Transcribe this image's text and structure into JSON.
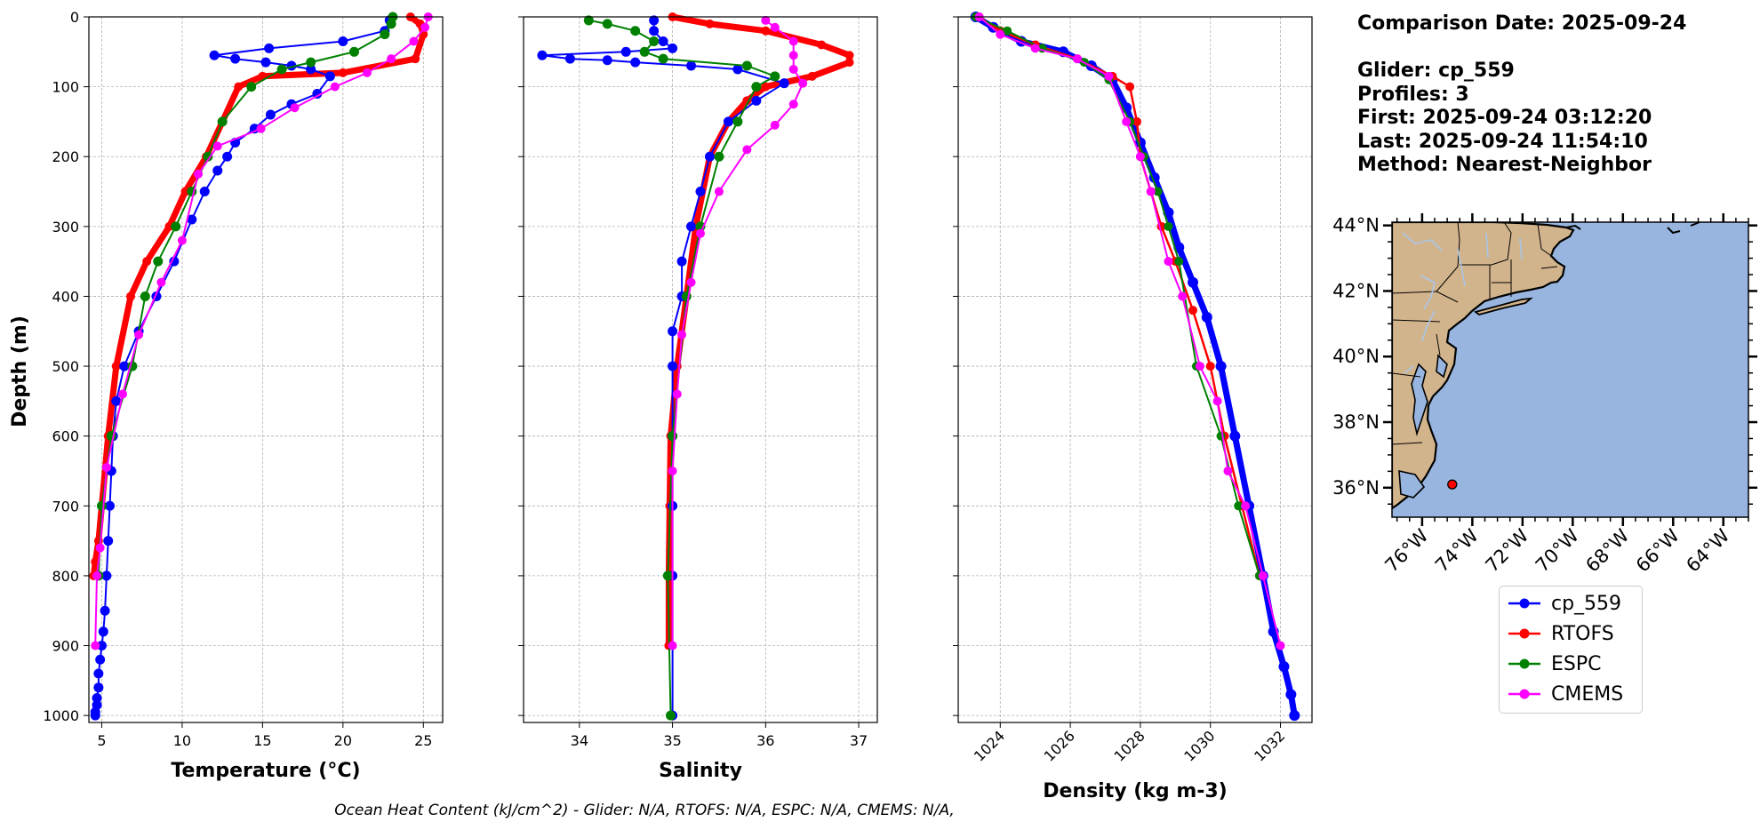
{
  "info": {
    "comparison_date": "Comparison Date: 2025-09-24",
    "glider": "Glider: cp_559",
    "profiles": "Profiles: 3",
    "first": "First: 2025-09-24 03:12:20",
    "last": "Last: 2025-09-24 11:54:10",
    "method": "Method: Nearest-Neighbor"
  },
  "footer": "Ocean Heat Content (kJ/cm^2) - Glider: N/A,  RTOFS: N/A,  ESPC: N/A,  CMEMS: N/A,",
  "colors": {
    "glider": "#0000ff",
    "rtofs": "#ff0000",
    "espc": "#008000",
    "cmems": "#ff00ff",
    "raw": "#00e5ff",
    "land": "#d2b48c",
    "ocean": "#98b5e0",
    "river": "#a9c6e8"
  },
  "legend": [
    {
      "label": "cp_559",
      "color": "#0000ff"
    },
    {
      "label": "RTOFS",
      "color": "#ff0000"
    },
    {
      "label": "ESPC",
      "color": "#008000"
    },
    {
      "label": "CMEMS",
      "color": "#ff00ff"
    }
  ],
  "chart_data": [
    {
      "type": "line",
      "xlabel": "Temperature (°C)",
      "ylabel": "Depth (m)",
      "xlim": [
        4.2,
        26.2
      ],
      "ylim": [
        1010,
        0
      ],
      "xticks": [
        5,
        10,
        15,
        20,
        25
      ],
      "yticks": [
        0,
        100,
        200,
        300,
        400,
        500,
        600,
        700,
        800,
        900,
        1000
      ],
      "grid": true,
      "series": [
        {
          "name": "cp_559",
          "x": [
            22.9,
            22.6,
            20.0,
            15.4,
            12.0,
            13.3,
            15.2,
            16.8,
            18.0,
            19.2,
            18.4,
            16.8,
            15.5,
            14.5,
            13.3,
            12.8,
            12.2,
            11.4,
            10.6,
            9.5,
            8.4,
            7.3,
            6.4,
            5.9,
            5.7,
            5.6,
            5.5,
            5.4,
            5.3,
            5.2,
            5.1,
            5.0,
            4.9,
            4.8,
            4.8,
            4.7,
            4.7,
            4.6,
            4.6
          ],
          "y": [
            5,
            20,
            35,
            45,
            55,
            60,
            65,
            70,
            75,
            85,
            110,
            125,
            140,
            160,
            180,
            200,
            220,
            250,
            290,
            350,
            400,
            450,
            500,
            550,
            600,
            650,
            700,
            750,
            800,
            850,
            880,
            900,
            920,
            940,
            960,
            975,
            985,
            995,
            1000
          ]
        },
        {
          "name": "RTOFS",
          "x": [
            24.2,
            24.8,
            25.0,
            24.5,
            20.0,
            15.0,
            13.5,
            12.5,
            11.5,
            10.2,
            9.2,
            7.8,
            6.8,
            5.9,
            5.4,
            5.0,
            4.8,
            4.6,
            4.5
          ],
          "y": [
            0,
            10,
            25,
            60,
            80,
            85,
            100,
            150,
            200,
            250,
            300,
            350,
            400,
            500,
            600,
            700,
            750,
            780,
            800
          ]
        },
        {
          "name": "ESPC",
          "x": [
            23.1,
            23.0,
            22.6,
            20.7,
            18.0,
            16.2,
            14.3,
            12.5,
            11.6,
            10.6,
            9.6,
            8.5,
            7.7,
            6.9,
            5.6,
            5.0,
            4.8
          ],
          "y": [
            0,
            10,
            25,
            50,
            65,
            75,
            100,
            150,
            200,
            250,
            300,
            350,
            400,
            500,
            600,
            700,
            800
          ]
        },
        {
          "name": "CMEMS",
          "x": [
            25.3,
            25.1,
            24.4,
            23.0,
            21.5,
            19.5,
            17.0,
            14.9,
            12.2,
            11.0,
            10.0,
            8.7,
            7.3,
            6.3,
            5.3,
            4.9,
            4.7,
            4.6
          ],
          "y": [
            0,
            15,
            35,
            60,
            80,
            100,
            130,
            160,
            185,
            225,
            320,
            380,
            455,
            540,
            645,
            760,
            800,
            900
          ]
        }
      ]
    },
    {
      "type": "line",
      "xlabel": "Salinity",
      "ylabel": "Depth (m)",
      "xlim": [
        33.4,
        37.2
      ],
      "ylim": [
        1010,
        0
      ],
      "xticks": [
        34,
        35,
        36,
        37
      ],
      "yticks": [
        0,
        100,
        200,
        300,
        400,
        500,
        600,
        700,
        800,
        900,
        1000
      ],
      "grid": true,
      "series": [
        {
          "name": "cp_559",
          "x": [
            34.8,
            34.8,
            34.9,
            35.0,
            34.5,
            33.6,
            33.9,
            34.3,
            34.6,
            35.2,
            35.7,
            36.2,
            35.9,
            35.6,
            35.4,
            35.3,
            35.2,
            35.1,
            35.1,
            35.0,
            35.0,
            35.0,
            35.0,
            35.0,
            35.0
          ],
          "y": [
            5,
            20,
            35,
            45,
            50,
            55,
            60,
            62,
            65,
            70,
            75,
            95,
            120,
            150,
            200,
            250,
            300,
            350,
            400,
            450,
            500,
            600,
            700,
            800,
            1000
          ]
        },
        {
          "name": "RTOFS",
          "x": [
            35.0,
            35.4,
            36.0,
            36.6,
            36.9,
            36.9,
            36.5,
            36.0,
            35.8,
            35.6,
            35.4,
            35.25,
            35.15,
            35.05,
            34.98,
            34.97,
            34.96,
            34.96
          ],
          "y": [
            0,
            10,
            20,
            40,
            55,
            65,
            85,
            100,
            120,
            150,
            200,
            300,
            400,
            500,
            600,
            700,
            800,
            900
          ]
        },
        {
          "name": "ESPC",
          "x": [
            34.1,
            34.3,
            34.6,
            34.8,
            34.7,
            34.9,
            35.8,
            36.1,
            35.9,
            35.7,
            35.5,
            35.3,
            35.15,
            35.0,
            34.95,
            34.98
          ],
          "y": [
            5,
            10,
            20,
            35,
            50,
            60,
            70,
            85,
            100,
            150,
            200,
            300,
            400,
            600,
            800,
            1000
          ]
        },
        {
          "name": "CMEMS",
          "x": [
            36.0,
            36.1,
            36.3,
            36.3,
            36.3,
            36.4,
            36.3,
            36.1,
            35.8,
            35.5,
            35.3,
            35.2,
            35.1,
            35.05,
            35.0,
            35.0
          ],
          "y": [
            5,
            15,
            35,
            55,
            75,
            95,
            125,
            155,
            190,
            250,
            310,
            380,
            455,
            540,
            650,
            900
          ]
        }
      ]
    },
    {
      "type": "line",
      "xlabel": "Density (kg m-3)",
      "ylabel": "Depth (m)",
      "xlim": [
        1022.8,
        1032.9
      ],
      "ylim": [
        1010,
        0
      ],
      "xticks": [
        1024,
        1026,
        1028,
        1030,
        1032
      ],
      "yticks": [
        0,
        100,
        200,
        300,
        400,
        500,
        600,
        700,
        800,
        900,
        1000
      ],
      "grid": true,
      "series": [
        {
          "name": "cp_559",
          "x": [
            1023.3,
            1023.8,
            1024.6,
            1025.8,
            1026.6,
            1027.2,
            1027.6,
            1028.0,
            1028.4,
            1028.8,
            1029.1,
            1029.5,
            1029.9,
            1030.3,
            1030.7,
            1031.1,
            1031.5,
            1031.8,
            1032.1,
            1032.3,
            1032.4
          ],
          "y": [
            0,
            15,
            35,
            50,
            70,
            90,
            130,
            180,
            230,
            280,
            330,
            380,
            430,
            500,
            600,
            700,
            800,
            880,
            930,
            970,
            1000
          ]
        },
        {
          "name": "RTOFS",
          "x": [
            1023.4,
            1024.0,
            1025.0,
            1026.2,
            1027.2,
            1027.7,
            1027.9,
            1028.0,
            1028.3,
            1028.6,
            1029.0,
            1029.5,
            1030.0,
            1030.4,
            1030.9,
            1031.4
          ],
          "y": [
            0,
            20,
            40,
            60,
            85,
            100,
            150,
            200,
            250,
            300,
            350,
            420,
            500,
            600,
            700,
            800
          ]
        },
        {
          "name": "ESPC",
          "x": [
            1023.3,
            1024.2,
            1025.2,
            1026.4,
            1027.1,
            1027.7,
            1028.1,
            1028.5,
            1028.8,
            1029.1,
            1029.6,
            1030.3,
            1030.8,
            1031.4
          ],
          "y": [
            0,
            20,
            45,
            65,
            90,
            150,
            200,
            250,
            300,
            350,
            500,
            600,
            700,
            800
          ]
        },
        {
          "name": "CMEMS",
          "x": [
            1023.4,
            1024.0,
            1025.0,
            1026.2,
            1027.1,
            1027.6,
            1028.0,
            1028.3,
            1028.8,
            1029.2,
            1029.7,
            1030.2,
            1030.5,
            1031.0,
            1031.5,
            1032.0
          ],
          "y": [
            0,
            25,
            45,
            60,
            85,
            150,
            200,
            250,
            350,
            400,
            500,
            550,
            650,
            700,
            800,
            900
          ]
        }
      ]
    },
    {
      "type": "map",
      "lon_range": [
        -77.2,
        -63.0
      ],
      "lat_range": [
        35.1,
        44.1
      ],
      "xticks": [
        -76,
        -74,
        -72,
        -70,
        -68,
        -66,
        -64
      ],
      "xtick_labels": [
        "76°W",
        "74°W",
        "72°W",
        "70°W",
        "68°W",
        "66°W",
        "64°W"
      ],
      "yticks": [
        36,
        38,
        40,
        42,
        44
      ],
      "ytick_labels": [
        "36°N",
        "38°N",
        "40°N",
        "42°N",
        "44°N"
      ],
      "marker": {
        "lon": -74.8,
        "lat": 36.1
      }
    }
  ]
}
